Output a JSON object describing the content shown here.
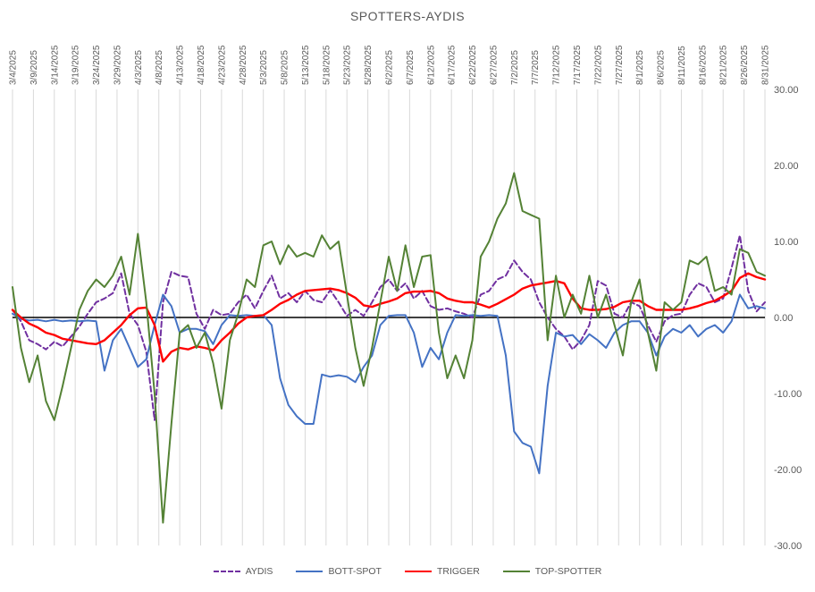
{
  "chart_data": {
    "type": "line",
    "title": "SPOTTERS-AYDIS",
    "xlabel": "",
    "ylabel": "",
    "ylim": [
      -30,
      30
    ],
    "grid": "vertical-only",
    "legend_position": "bottom",
    "gridline_color": "#d9d9d9",
    "zero_line_color": "#000000",
    "text_color": "#595959",
    "x_tick_labels": [
      "3/4/2025",
      "3/9/2025",
      "3/14/2025",
      "3/19/2025",
      "3/24/2025",
      "3/29/2025",
      "4/3/2025",
      "4/8/2025",
      "4/13/2025",
      "4/18/2025",
      "4/23/2025",
      "4/28/2025",
      "5/3/2025",
      "5/8/2025",
      "5/13/2025",
      "5/18/2025",
      "5/23/2025",
      "5/28/2025",
      "6/2/2025",
      "6/7/2025",
      "6/12/2025",
      "6/17/2025",
      "6/22/2025",
      "6/27/2025",
      "7/2/2025",
      "7/7/2025",
      "7/12/2025",
      "7/17/2025",
      "7/22/2025",
      "7/27/2025",
      "8/1/2025",
      "8/6/2025",
      "8/11/2025",
      "8/16/2025",
      "8/21/2025",
      "8/26/2025",
      "8/31/2025"
    ],
    "y_ticks": [
      {
        "label": "30.00",
        "value": 30
      },
      {
        "label": "20.00",
        "value": 20
      },
      {
        "label": "10.00",
        "value": 10
      },
      {
        "label": "0.00",
        "value": 0
      },
      {
        "label": "-10.00",
        "value": -10
      },
      {
        "label": "-20.00",
        "value": -20
      },
      {
        "label": "-30.00",
        "value": -30
      }
    ],
    "sample_step_days": 2,
    "x_span_days": 180,
    "series": [
      {
        "name": "AYDIS",
        "color": "#7030A0",
        "style": "dashed",
        "values": [
          1,
          -0.5,
          -3,
          -3.5,
          -4.2,
          -3.2,
          -3.8,
          -2.5,
          -1.2,
          0.5,
          2,
          2.5,
          3.2,
          5.8,
          0.5,
          -1,
          -4.5,
          -13.5,
          2,
          6,
          5.5,
          5.3,
          0.5,
          -1.5,
          1,
          0.3,
          0.5,
          2,
          3,
          1.2,
          3.5,
          5.5,
          2.5,
          3.2,
          2,
          3.5,
          2.3,
          2,
          3.6,
          2,
          0.2,
          1,
          0.2,
          2,
          4,
          5,
          3.5,
          4.5,
          2.5,
          3.5,
          1.5,
          1,
          1.2,
          0.8,
          0.5,
          0,
          3,
          3.5,
          5,
          5.5,
          7.5,
          6,
          5,
          2,
          0,
          -1.5,
          -2.5,
          -4.2,
          -3,
          -1,
          4.8,
          4.2,
          0.5,
          0,
          2,
          1.5,
          -1,
          -3.2,
          -0.5,
          0.3,
          0.5,
          3,
          4.5,
          4,
          2,
          2.5,
          6.5,
          10.8,
          3.5,
          0.8,
          2
        ]
      },
      {
        "name": "BOTT-SPOT",
        "color": "#4472C4",
        "style": "solid",
        "values": [
          0.5,
          -0.2,
          -0.4,
          -0.3,
          -0.5,
          -0.3,
          -0.5,
          -0.4,
          -0.5,
          -0.4,
          -0.5,
          -7,
          -3,
          -1.5,
          -4,
          -6.5,
          -5.5,
          -1,
          3,
          1.5,
          -2,
          -1.5,
          -1.5,
          -1.8,
          -3.5,
          -1,
          0.3,
          0.2,
          0.3,
          0.2,
          0.3,
          -1,
          -8,
          -11.5,
          -13,
          -14,
          -14,
          -7.5,
          -7.8,
          -7.6,
          -7.8,
          -8.5,
          -6.5,
          -5,
          -1,
          0.2,
          0.3,
          0.3,
          -2,
          -6.5,
          -4,
          -5.5,
          -2,
          0.3,
          0.2,
          0.3,
          0.2,
          0.3,
          0.2,
          -5,
          -15,
          -16.5,
          -17,
          -20.5,
          -9,
          -2,
          -2.5,
          -2.3,
          -3.5,
          -2.2,
          -3,
          -4,
          -2,
          -1,
          -0.5,
          -0.5,
          -2,
          -5,
          -2.5,
          -1.5,
          -2,
          -1,
          -2.5,
          -1.5,
          -1,
          -2,
          -0.5,
          3,
          1.2,
          1.5,
          1.2
        ]
      },
      {
        "name": "TRIGGER",
        "color": "#FF0000",
        "style": "solid",
        "values": [
          1,
          0,
          -0.8,
          -1.3,
          -2,
          -2.3,
          -2.8,
          -3,
          -3.2,
          -3.4,
          -3.5,
          -3,
          -2,
          -1,
          0.3,
          1.2,
          1.3,
          -1,
          -5.8,
          -4.5,
          -4,
          -4.2,
          -3.8,
          -4,
          -4.3,
          -3,
          -2,
          -0.8,
          0,
          0.2,
          0.3,
          1,
          1.8,
          2.3,
          3,
          3.5,
          3.6,
          3.7,
          3.8,
          3.6,
          3.2,
          2.6,
          1.6,
          1.4,
          1.8,
          2.1,
          2.5,
          3.2,
          3.4,
          3.4,
          3.5,
          3.2,
          2.5,
          2.2,
          2,
          2,
          1.7,
          1.3,
          1.8,
          2.4,
          3,
          3.8,
          4.2,
          4.4,
          4.6,
          4.8,
          4.5,
          2.5,
          1.2,
          1,
          1,
          1.1,
          1.4,
          2,
          2.2,
          2.2,
          1.5,
          1,
          1,
          1,
          1,
          1.2,
          1.5,
          1.9,
          2.2,
          2.8,
          3.5,
          5.2,
          5.8,
          5.3,
          5
        ]
      },
      {
        "name": "TOP-SPOTTER",
        "color": "#548235",
        "style": "solid",
        "values": [
          4,
          -4,
          -8.5,
          -5,
          -11,
          -13.5,
          -9,
          -4,
          1,
          3.5,
          5,
          4,
          5.5,
          8,
          3,
          11,
          2,
          -10,
          -27,
          -14,
          -2,
          -1,
          -4,
          -2,
          -6,
          -12,
          -3,
          0.5,
          5,
          4,
          9.5,
          10,
          7,
          9.5,
          8,
          8.5,
          8,
          10.8,
          9,
          10,
          3,
          -4,
          -9,
          -4,
          2,
          8,
          3.5,
          9.5,
          4,
          8,
          8.2,
          -2,
          -8,
          -5,
          -8,
          -3,
          8,
          10,
          13,
          15,
          19,
          14,
          13.5,
          13,
          -3,
          5.5,
          0,
          3,
          0.5,
          5.5,
          0,
          3,
          -1,
          -5,
          2,
          5,
          -2,
          -7,
          2,
          1,
          2,
          7.5,
          7,
          8,
          3.5,
          4,
          3,
          9,
          8.5,
          6,
          5.5
        ]
      }
    ]
  }
}
